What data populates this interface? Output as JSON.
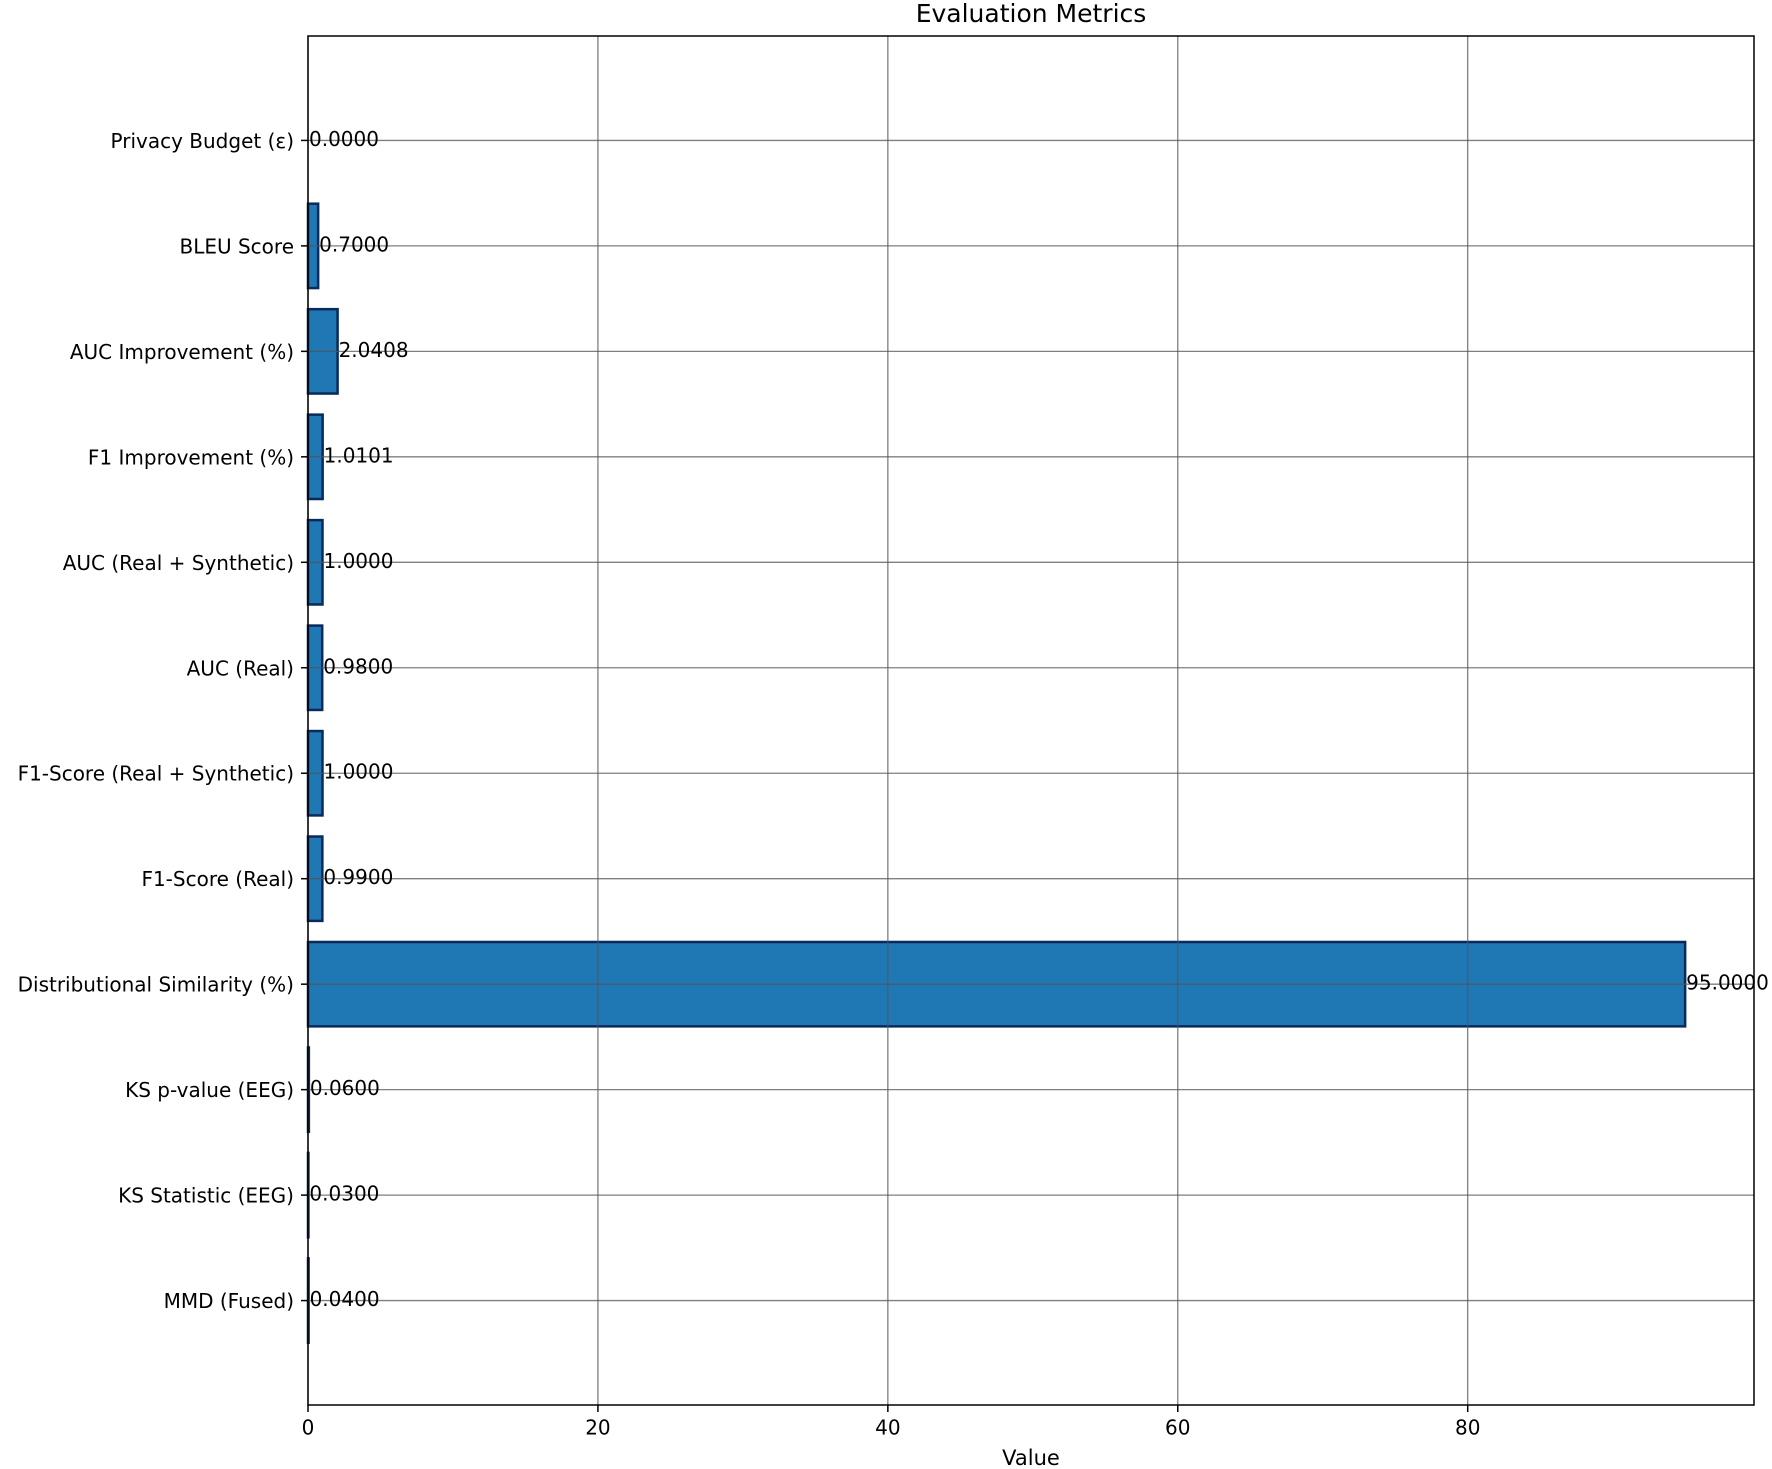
{
  "chart_data": {
    "type": "barh",
    "title": "Evaluation Metrics",
    "x_label": "Value",
    "categories": [
      "MMD (Fused)",
      "KS Statistic (EEG)",
      "KS p-value (EEG)",
      "Distributional Similarity (%)",
      "F1-Score (Real)",
      "F1-Score (Real + Synthetic)",
      "AUC (Real)",
      "AUC (Real + Synthetic)",
      "F1 Improvement (%)",
      "AUC Improvement (%)",
      "BLEU Score",
      "Privacy Budget (ε)"
    ],
    "values": [
      0.04,
      0.03,
      0.06,
      95,
      0.99,
      1.0,
      0.98,
      1.0,
      1.0101,
      2.0408,
      0.7,
      0
    ],
    "value_labels": [
      "0.0400",
      "0.0300",
      "0.0600",
      "95.0000",
      "0.9900",
      "1.0000",
      "0.9800",
      "1.0000",
      "1.0101",
      "2.0408",
      "0.7000",
      "0.0000"
    ],
    "color": "#1f77b4",
    "edge_color": "#0b2a5c",
    "xlim": [
      0,
      99.75
    ],
    "xticks": [
      0,
      20,
      40,
      60,
      80
    ],
    "grid": true
  }
}
